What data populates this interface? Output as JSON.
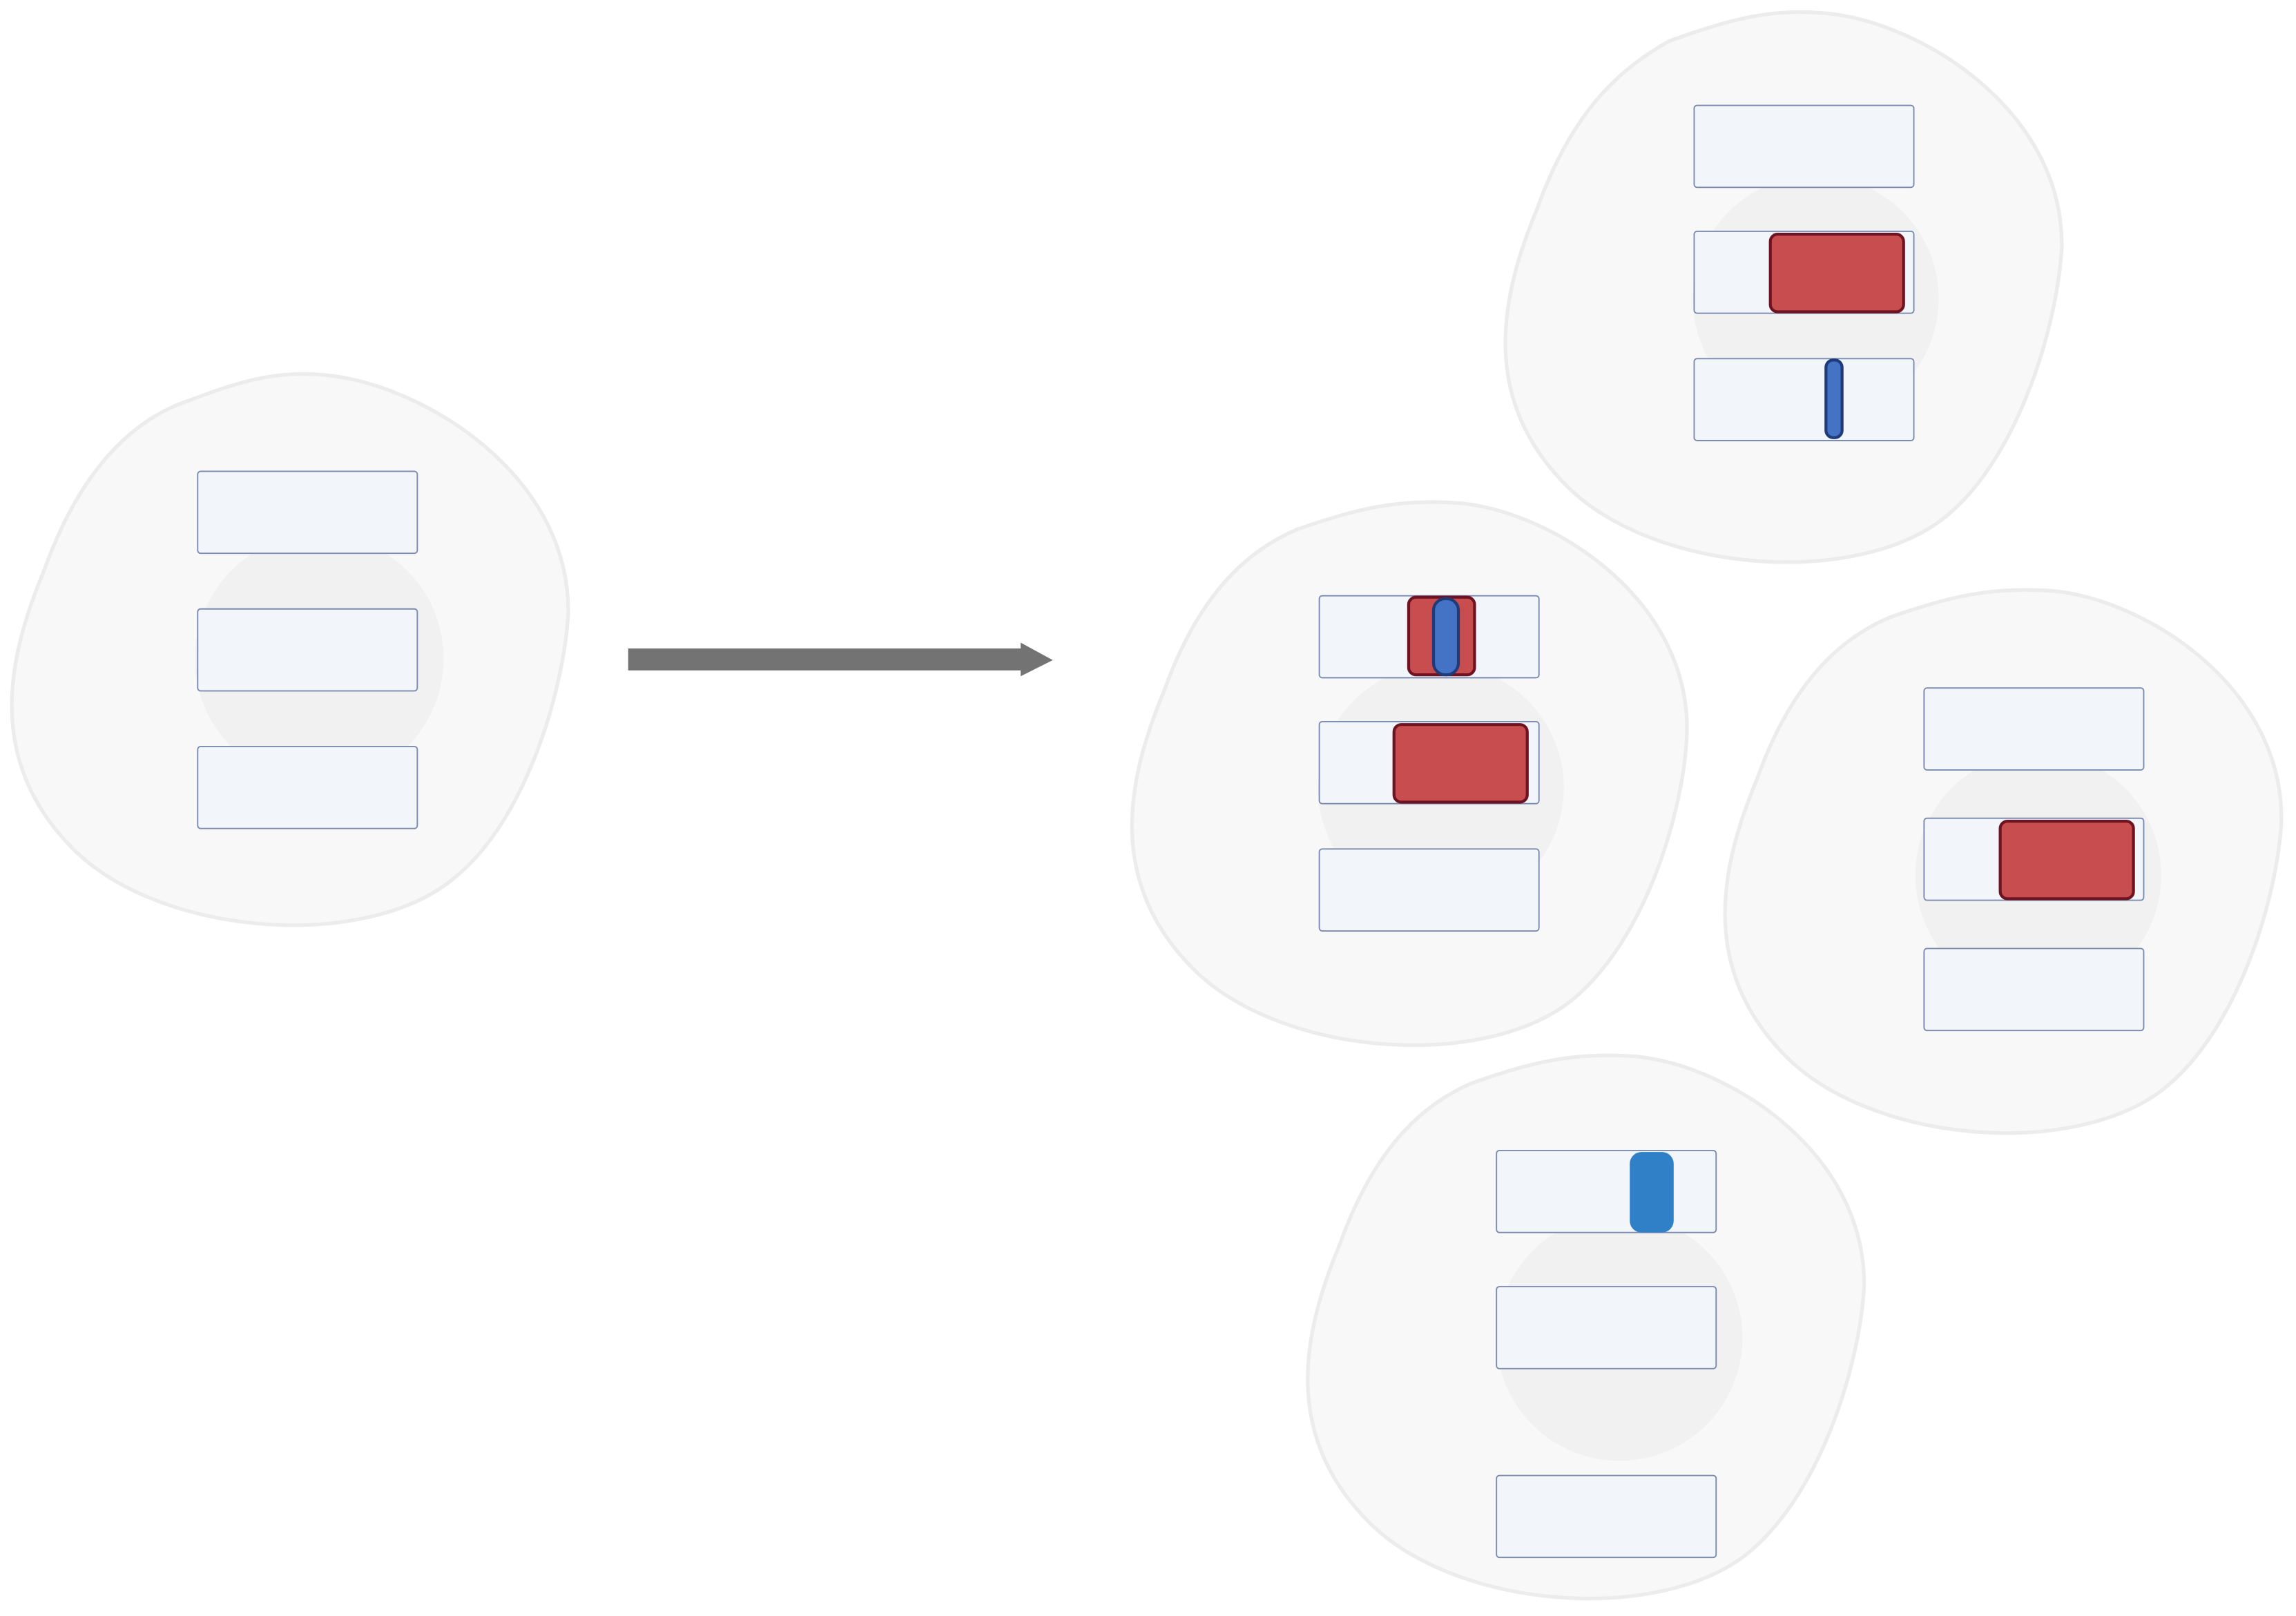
{
  "colors": {
    "background": "#ffffff",
    "cell_fill": "#f8f8f8",
    "cell_stroke": "#ececec",
    "nucleus_fill": "#f1f1f1",
    "slot_fill": "#f2f5fa",
    "slot_stroke": "#7b8bb0",
    "arrow": "#737373",
    "red_block_fill": "#c84d4f",
    "red_block_stroke": "#6e1321",
    "blue_bar_fill": "#4472c4",
    "blue_bar_stroke": "#1f3b7a",
    "blue_block_fill": "#3080c8"
  },
  "cells": [
    {
      "id": "source",
      "slots": [
        {
          "contents": []
        },
        {
          "contents": []
        },
        {
          "contents": []
        }
      ]
    },
    {
      "id": "center",
      "slots": [
        {
          "contents": [
            "red-block",
            "blue-bar"
          ]
        },
        {
          "contents": [
            "red-block"
          ]
        },
        {
          "contents": []
        }
      ]
    },
    {
      "id": "top",
      "slots": [
        {
          "contents": []
        },
        {
          "contents": [
            "red-block"
          ]
        },
        {
          "contents": [
            "blue-bar"
          ]
        }
      ]
    },
    {
      "id": "right",
      "slots": [
        {
          "contents": []
        },
        {
          "contents": [
            "red-block"
          ]
        },
        {
          "contents": []
        }
      ]
    },
    {
      "id": "bottom",
      "slots": [
        {
          "contents": [
            "blue-block"
          ]
        },
        {
          "contents": []
        },
        {
          "contents": []
        }
      ]
    }
  ],
  "arrow": {
    "direction": "right",
    "icon": "arrow-right-icon"
  }
}
